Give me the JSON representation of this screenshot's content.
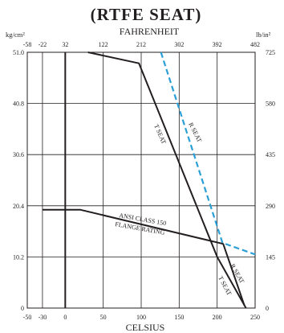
{
  "chart_data": {
    "type": "line",
    "title": "(RTFE SEAT)",
    "x_axis": {
      "label": "CELSIUS",
      "ticks": [
        -50,
        -30,
        0,
        50,
        100,
        150,
        200,
        250
      ],
      "range": [
        -50,
        250
      ]
    },
    "x2_axis": {
      "label": "FAHRENHEIT",
      "ticks": [
        -58,
        -22,
        32,
        122,
        212,
        302,
        392,
        482
      ]
    },
    "y_axis": {
      "label": "kg/cm²",
      "ticks": [
        "0",
        "10.2",
        "20.4",
        "30.6",
        "40.8",
        "51.0"
      ],
      "range": [
        0,
        51.0
      ]
    },
    "y2_axis": {
      "label": "lb/in²",
      "ticks": [
        "0",
        "145",
        "290",
        "435",
        "580",
        "725"
      ]
    },
    "grid": true,
    "series": [
      {
        "name": "T SEAT",
        "style": "solid",
        "color": "#231f20",
        "points": [
          [
            30,
            51.0
          ],
          [
            97,
            48.8
          ],
          [
            200,
            10.2
          ],
          [
            238,
            0
          ]
        ]
      },
      {
        "name": "R SEAT",
        "style": "dashed",
        "color": "#2a9fd6",
        "points": [
          [
            126,
            51.0
          ],
          [
            207,
            13.0
          ],
          [
            250,
            10.7
          ]
        ]
      },
      {
        "name": "ANSI CLASS 150 FLANGE RATING",
        "style": "solid",
        "color": "#231f20",
        "points": [
          [
            -30,
            19.6
          ],
          [
            20,
            19.6
          ],
          [
            208,
            12.8
          ],
          [
            236,
            0.5
          ]
        ]
      }
    ],
    "annotations": [
      "ANSI CLASS 150",
      "FLANGE RATING",
      "T SEAT",
      "R SEAT",
      "R SEAT",
      "T SEAT"
    ]
  }
}
